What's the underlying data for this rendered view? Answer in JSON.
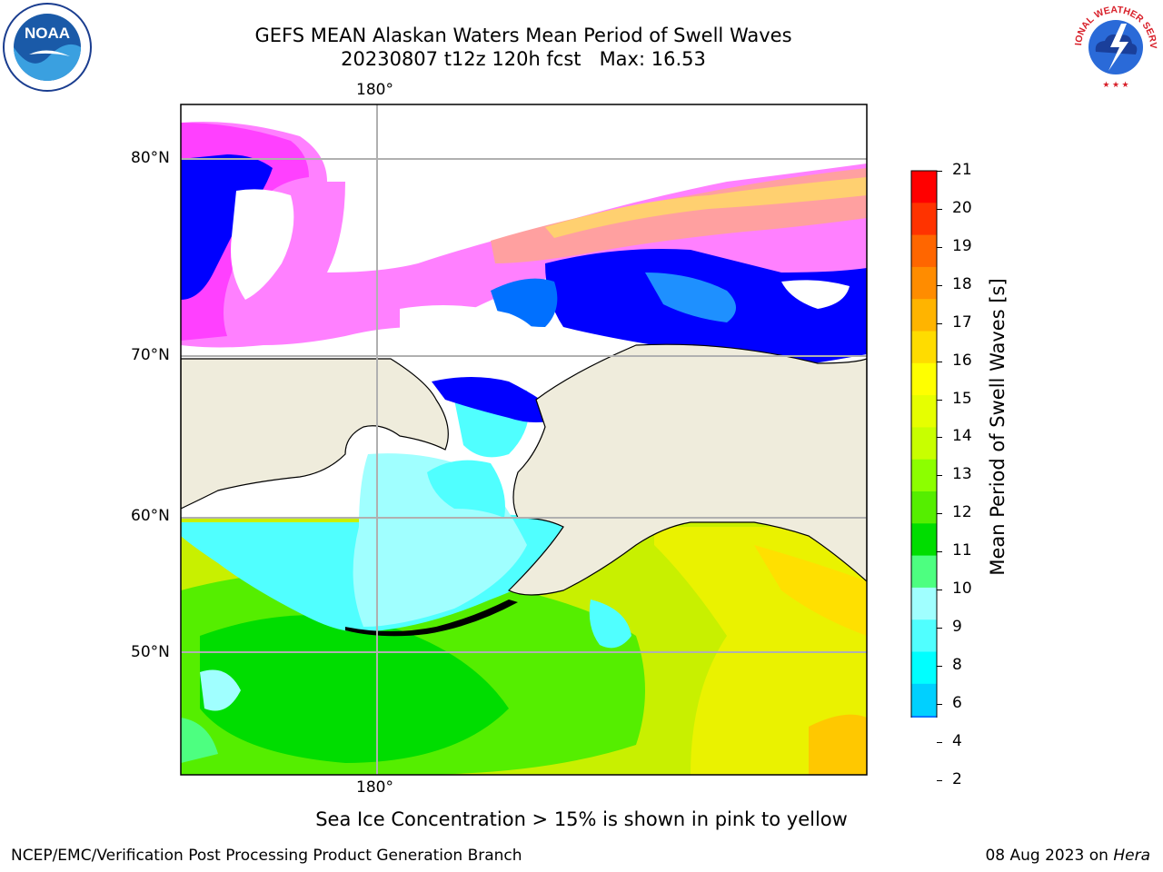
{
  "header": {
    "title": "GEFS MEAN Alaskan Waters Mean Period of Swell Waves",
    "subtitle": "20230807 t12z 120h fcst   Max: 16.53"
  },
  "logos": {
    "left": {
      "name": "noaa-logo",
      "text": "NOAA"
    },
    "right": {
      "name": "nws-logo",
      "text": "NATIONAL WEATHER SERVICE"
    }
  },
  "map": {
    "lon_label_top": "180°",
    "lon_label_bottom": "180°",
    "lat_labels": [
      "80°N",
      "70°N",
      "60°N",
      "50°N"
    ],
    "colors": {
      "land": "#efecdc",
      "ice_missing": "#ffffff",
      "coast": "#000000",
      "grid": "#b0b0b0"
    }
  },
  "colorbar": {
    "label": "Mean Period of Swell Waves [s]",
    "ticks": [
      "21",
      "20",
      "19",
      "18",
      "17",
      "16",
      "15",
      "14",
      "13",
      "12",
      "11",
      "10",
      "9",
      "8",
      "6",
      "4",
      "2"
    ],
    "colors": [
      "#ff0000",
      "#ff3300",
      "#ff6600",
      "#ff8c00",
      "#ffb400",
      "#ffdc00",
      "#ffff00",
      "#e6ff00",
      "#c8ff00",
      "#8cff00",
      "#55ee00",
      "#00dd00",
      "#4dff80",
      "#a0ffff",
      "#50ffff",
      "#00ffff",
      "#00d0ff",
      "#0070ff",
      "#0000ff"
    ],
    "under_color": "#0000ff"
  },
  "caption": "Sea Ice Concentration > 15% is shown in pink to yellow",
  "footer": {
    "left": "NCEP/EMC/Verification Post Processing Product Generation Branch",
    "right_prefix": "08 Aug 2023 on ",
    "right_host": "Hera"
  }
}
